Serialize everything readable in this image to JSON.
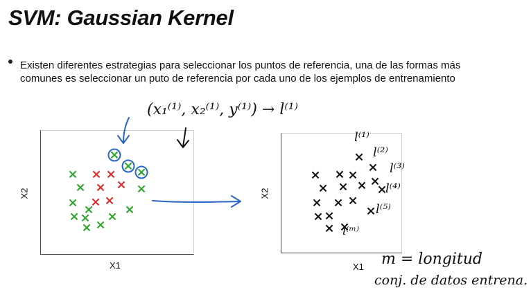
{
  "title": "SVM: Gaussian Kernel",
  "bullet": "Existen diferentes estrategias para seleccionar los puntos de referencia, una de las formas más comunes es seleccionar un puto de referencia por cada uno de los ejemplos de entrenamiento",
  "left_plot": {
    "xlabel": "X1",
    "ylabel": "X2"
  },
  "right_plot": {
    "xlabel": "X1",
    "ylabel": "X2"
  },
  "annotations": {
    "tuple": "(x₁⁽¹⁾, x₂⁽¹⁾, y⁽¹⁾) → l⁽¹⁾",
    "landmarks": [
      "l⁽¹⁾",
      "l⁽²⁾",
      "l⁽³⁾",
      "l⁽⁴⁾",
      "l⁽⁵⁾",
      "l⁽ᵐ⁾"
    ],
    "m_eq": "m = longitud",
    "conj": "conj. de datos entrena."
  },
  "colors": {
    "green": "#2ea62e",
    "red": "#dd2b2b",
    "black": "#111111",
    "blue": "#2a64c6"
  },
  "marker": "×"
}
